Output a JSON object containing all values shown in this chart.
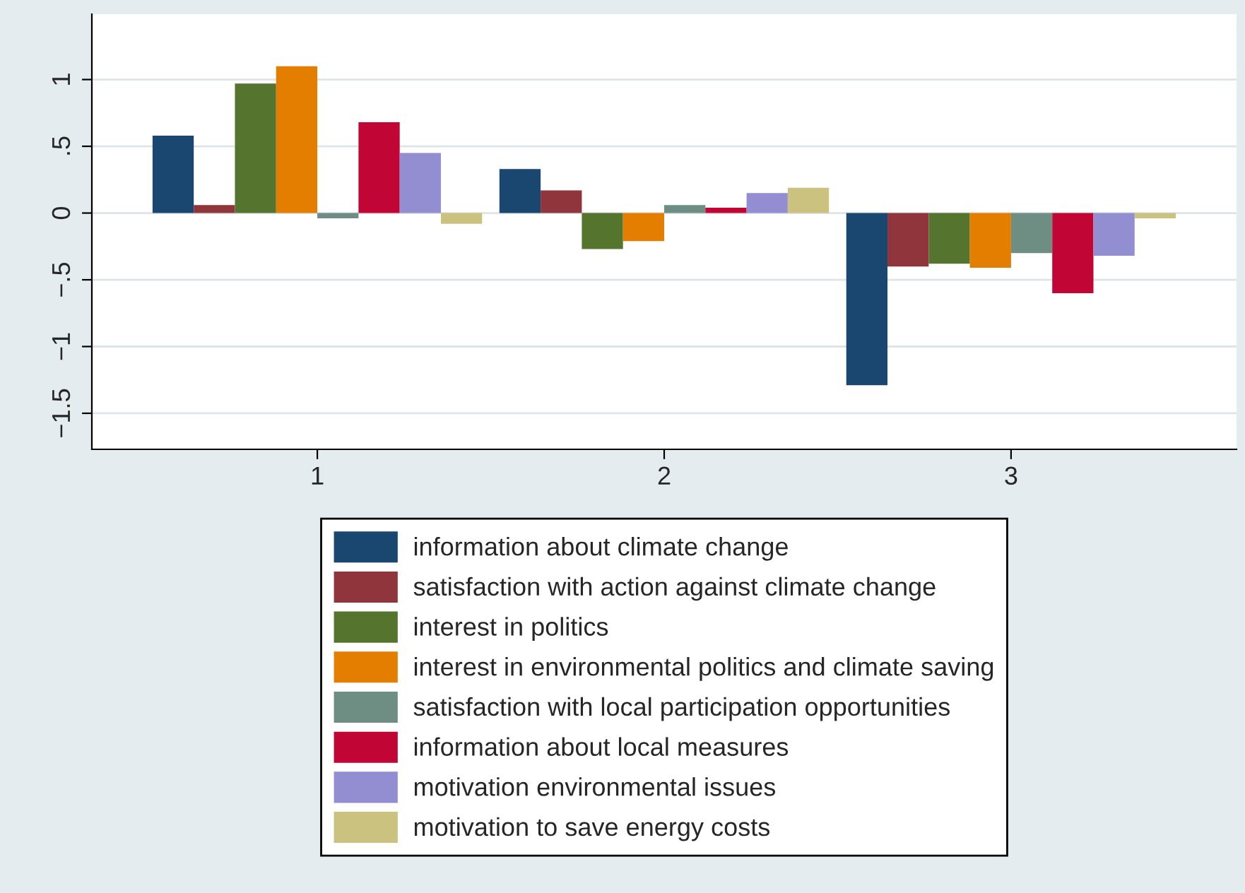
{
  "chart_data": {
    "type": "bar",
    "categories": [
      "1",
      "2",
      "3"
    ],
    "series": [
      {
        "name": "information about climate change",
        "color": "#1a476f",
        "values": [
          0.58,
          0.33,
          -1.29
        ]
      },
      {
        "name": "satisfaction with action against climate change",
        "color": "#90353b",
        "values": [
          0.06,
          0.17,
          -0.4
        ]
      },
      {
        "name": "interest in politics",
        "color": "#55752f",
        "values": [
          0.97,
          -0.27,
          -0.38
        ]
      },
      {
        "name": "interest in environmental politics and climate saving",
        "color": "#e37e00",
        "values": [
          1.1,
          -0.21,
          -0.41
        ]
      },
      {
        "name": "satisfaction with local participation opportunities",
        "color": "#6e8e84",
        "values": [
          -0.04,
          0.06,
          -0.3
        ]
      },
      {
        "name": "information about local measures",
        "color": "#c10534",
        "values": [
          0.68,
          0.04,
          -0.6
        ]
      },
      {
        "name": "motivation environmental issues",
        "color": "#938dd2",
        "values": [
          0.45,
          0.15,
          -0.32
        ]
      },
      {
        "name": "motivation to save energy costs",
        "color": "#cac27e",
        "values": [
          -0.08,
          0.19,
          -0.04
        ]
      }
    ],
    "ylim": [
      -1.77,
      1.49
    ],
    "yticks": [
      {
        "value": -1.5,
        "label": "−1.5"
      },
      {
        "value": -1,
        "label": "−1"
      },
      {
        "value": -0.5,
        "label": "−.5"
      },
      {
        "value": 0,
        "label": "0"
      },
      {
        "value": 0.5,
        "label": ".5"
      },
      {
        "value": 1,
        "label": "1"
      }
    ],
    "grid": "y",
    "legend": "bottom"
  }
}
